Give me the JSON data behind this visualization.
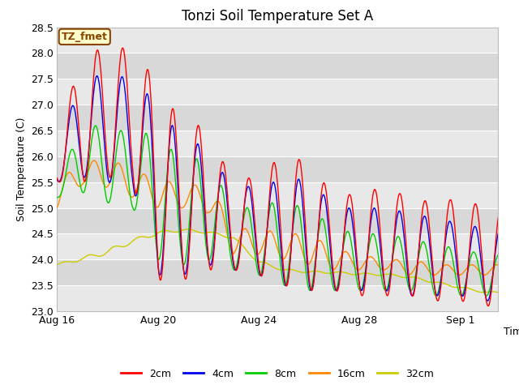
{
  "title": "Tonzi Soil Temperature Set A",
  "xlabel": "Time",
  "ylabel": "Soil Temperature (C)",
  "ylim": [
    23.0,
    28.5
  ],
  "yticks": [
    23.0,
    23.5,
    24.0,
    24.5,
    25.0,
    25.5,
    26.0,
    26.5,
    27.0,
    27.5,
    28.0,
    28.5
  ],
  "xtick_labels": [
    "Aug 16",
    "Aug 20",
    "Aug 24",
    "Aug 28",
    "Sep 1"
  ],
  "xtick_pos": [
    0,
    4,
    8,
    12,
    16
  ],
  "xlim": [
    0,
    17.5
  ],
  "colors": {
    "2cm": "#ff0000",
    "4cm": "#0000ee",
    "8cm": "#00cc00",
    "16cm": "#ff8800",
    "32cm": "#cccc00"
  },
  "legend_labels": [
    "2cm",
    "4cm",
    "8cm",
    "16cm",
    "32cm"
  ],
  "annotation_text": "TZ_fmet",
  "annotation_bg": "#ffffcc",
  "annotation_border": "#884400",
  "fig_bg": "#ffffff",
  "plot_bg_light": "#e8e8e8",
  "plot_bg_dark": "#d8d8d8",
  "grid_color": "#ffffff",
  "title_fontsize": 12,
  "label_fontsize": 9,
  "tick_fontsize": 9
}
